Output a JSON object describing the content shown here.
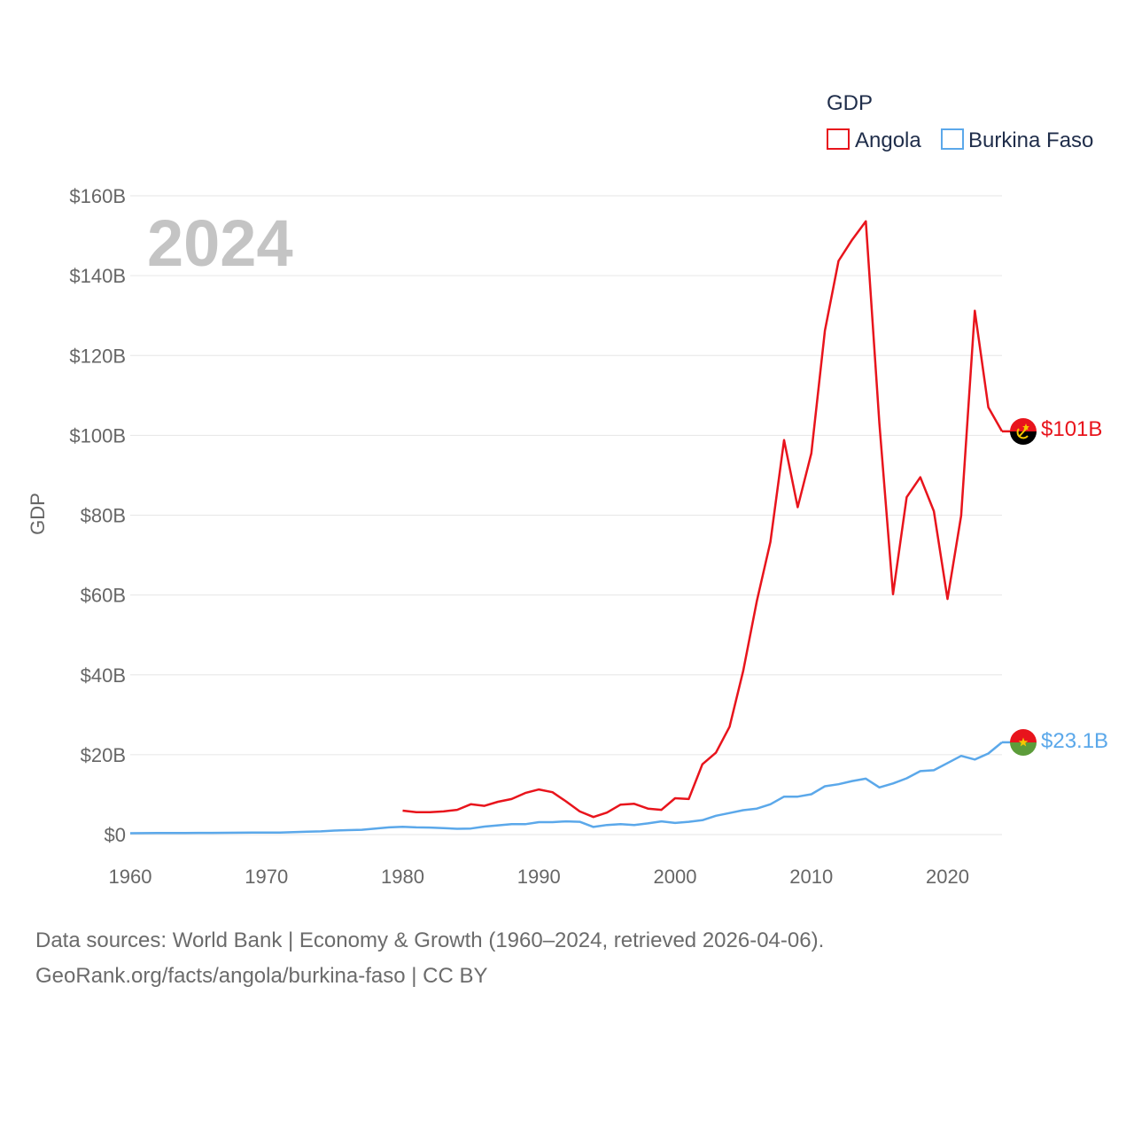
{
  "chart_data": {
    "type": "line",
    "legend_title": "GDP",
    "ylabel": "GDP",
    "year_label": "2024",
    "ylim": [
      0,
      160
    ],
    "yticks": [
      0,
      20,
      40,
      60,
      80,
      100,
      120,
      140,
      160
    ],
    "ytick_labels": [
      "$0",
      "$20B",
      "$40B",
      "$60B",
      "$80B",
      "$100B",
      "$120B",
      "$140B",
      "$160B"
    ],
    "xlim": [
      1960,
      2024
    ],
    "xticks": [
      1960,
      1970,
      1980,
      1990,
      2000,
      2010,
      2020
    ],
    "xtick_labels": [
      "1960",
      "1970",
      "1980",
      "1990",
      "2000",
      "2010",
      "2020"
    ],
    "legend_position": "top-right",
    "series": [
      {
        "name": "Angola",
        "color": "#e8141c",
        "flag_icon": "angola-flag-icon",
        "end_label": "$101B",
        "x": [
          1980,
          1981,
          1982,
          1983,
          1984,
          1985,
          1986,
          1987,
          1988,
          1989,
          1990,
          1991,
          1992,
          1993,
          1994,
          1995,
          1996,
          1997,
          1998,
          1999,
          2000,
          2001,
          2002,
          2003,
          2004,
          2005,
          2006,
          2007,
          2008,
          2009,
          2010,
          2011,
          2012,
          2013,
          2014,
          2015,
          2016,
          2017,
          2018,
          2019,
          2020,
          2021,
          2022,
          2023,
          2024
        ],
        "values": [
          6.0,
          5.6,
          5.6,
          5.8,
          6.2,
          7.6,
          7.2,
          8.2,
          8.9,
          10.4,
          11.3,
          10.6,
          8.3,
          5.8,
          4.4,
          5.5,
          7.5,
          7.7,
          6.5,
          6.2,
          9.1,
          8.9,
          17.6,
          20.5,
          27.0,
          41.0,
          58.5,
          73.3,
          98.8,
          82.0,
          95.5,
          126.2,
          143.7,
          149.0,
          153.6,
          103.0,
          60.2,
          84.5,
          89.5,
          81.0,
          59.0,
          79.9,
          131.2,
          107.0,
          101.0
        ]
      },
      {
        "name": "Burkina Faso",
        "color": "#5ba8ea",
        "flag_icon": "burkina-faso-flag-icon",
        "end_label": "$23.1B",
        "x": [
          1960,
          1961,
          1962,
          1963,
          1964,
          1965,
          1966,
          1967,
          1968,
          1969,
          1970,
          1971,
          1972,
          1973,
          1974,
          1975,
          1976,
          1977,
          1978,
          1979,
          1980,
          1981,
          1982,
          1983,
          1984,
          1985,
          1986,
          1987,
          1988,
          1989,
          1990,
          1991,
          1992,
          1993,
          1994,
          1995,
          1996,
          1997,
          1998,
          1999,
          2000,
          2001,
          2002,
          2003,
          2004,
          2005,
          2006,
          2007,
          2008,
          2009,
          2010,
          2011,
          2012,
          2013,
          2014,
          2015,
          2016,
          2017,
          2018,
          2019,
          2020,
          2021,
          2022,
          2023,
          2024
        ],
        "values": [
          0.33,
          0.35,
          0.37,
          0.38,
          0.4,
          0.42,
          0.43,
          0.45,
          0.47,
          0.49,
          0.5,
          0.52,
          0.6,
          0.7,
          0.8,
          1.0,
          1.1,
          1.2,
          1.5,
          1.8,
          1.95,
          1.8,
          1.75,
          1.6,
          1.45,
          1.5,
          2.0,
          2.3,
          2.6,
          2.6,
          3.1,
          3.1,
          3.3,
          3.2,
          1.9,
          2.4,
          2.6,
          2.4,
          2.8,
          3.3,
          2.9,
          3.2,
          3.6,
          4.7,
          5.4,
          6.1,
          6.5,
          7.6,
          9.5,
          9.5,
          10.1,
          12.1,
          12.6,
          13.4,
          14.0,
          11.8,
          12.8,
          14.1,
          15.9,
          16.1,
          17.9,
          19.7,
          18.8,
          20.3,
          23.1
        ]
      }
    ]
  },
  "footer": {
    "line1": "Data sources: World Bank | Economy & Growth (1960–2024, retrieved 2026-04-06).",
    "line2": "GeoRank.org/facts/angola/burkina-faso | CC BY"
  }
}
